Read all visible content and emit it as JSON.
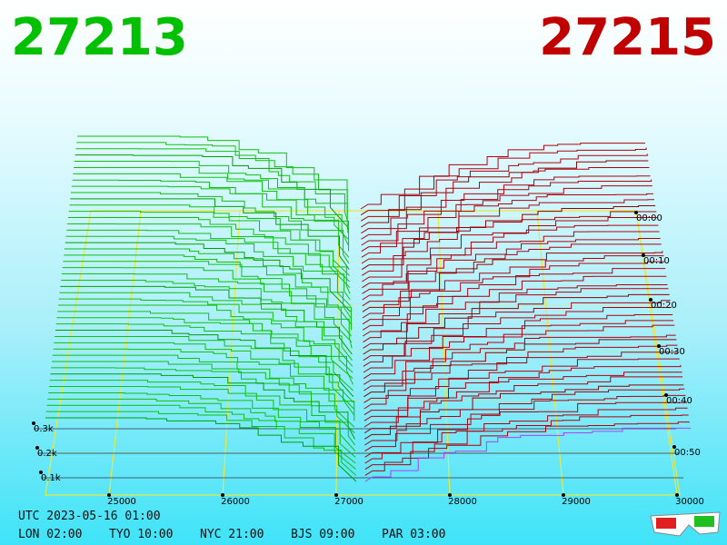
{
  "bid_price": "27213",
  "ask_price": "27215",
  "price_axis": [
    "25000",
    "26000",
    "27000",
    "28000",
    "29000",
    "30000"
  ],
  "depth_axis": [
    "0.1k",
    "0.2k",
    "0.3k"
  ],
  "time_axis": [
    "00:00",
    "00:10",
    "00:20",
    "00:30",
    "00:40",
    "00:50"
  ],
  "timestamp": "UTC 2023-05-16 01:00",
  "clocks": [
    "LON 02:00",
    "TYO 10:00",
    "NYC 21:00",
    "BJS 09:00",
    "PAR 03:00"
  ]
}
